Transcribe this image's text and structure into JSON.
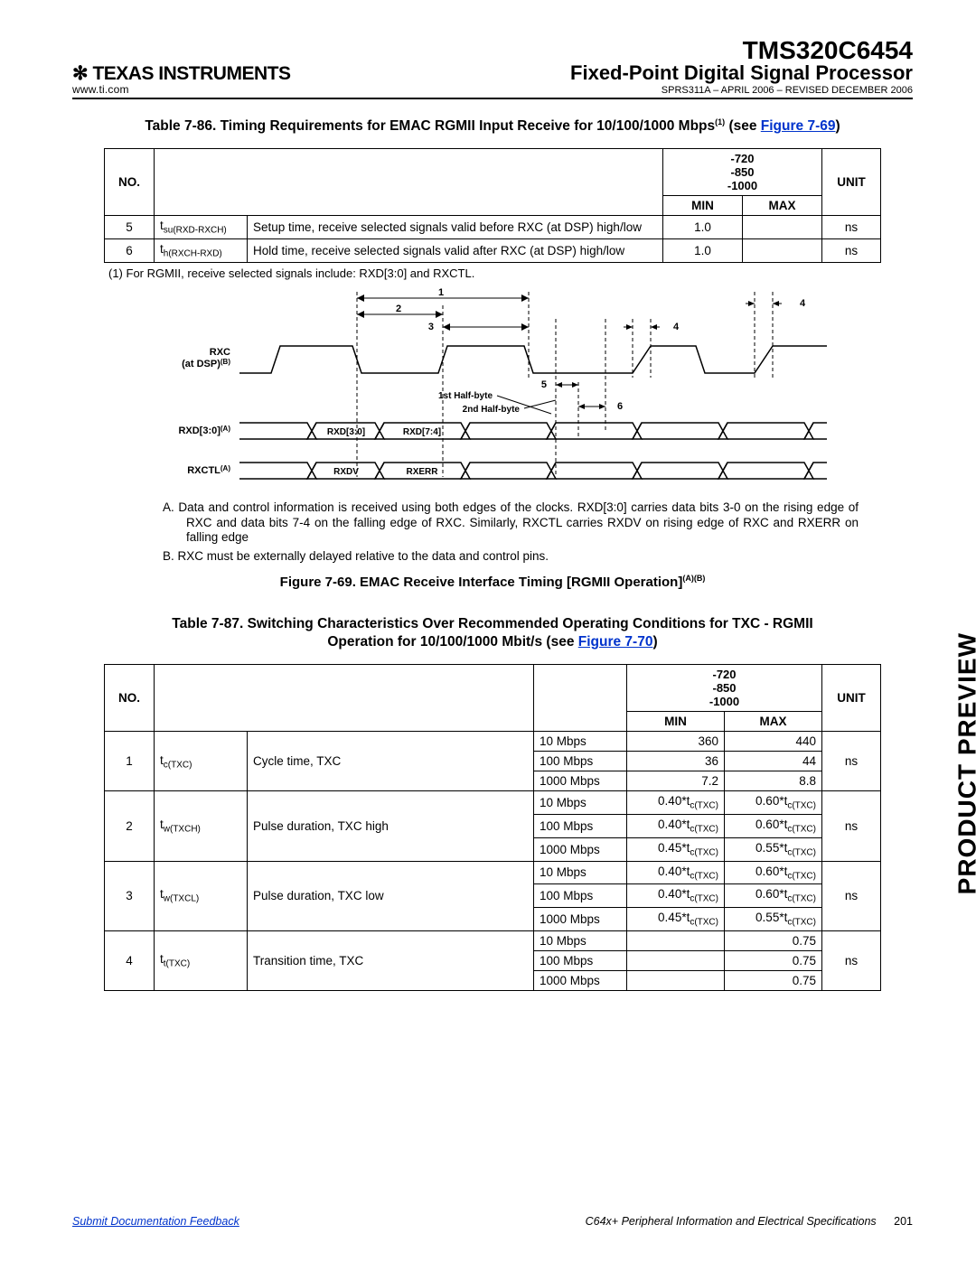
{
  "header": {
    "company": "TEXAS INSTRUMENTS",
    "url": "www.ti.com",
    "chip": "TMS320C6454",
    "subtitle": "Fixed-Point Digital Signal Processor",
    "rev": "SPRS311A – APRIL 2006 – REVISED DECEMBER 2006"
  },
  "sideLabel": "PRODUCT PREVIEW",
  "table86": {
    "title_pre": "Table 7-86. Timing Requirements for EMAC RGMII Input Receive for 10/100/1000 Mbps",
    "title_sup": "(1)",
    "title_see": " (see ",
    "title_ref": "Figure 7-69",
    "title_post": ")",
    "cols": {
      "no": "NO.",
      "speed": "-720\n-850\n-1000",
      "min": "MIN",
      "max": "MAX",
      "unit": "UNIT"
    },
    "rows": [
      {
        "no": "5",
        "sym_main": "t",
        "sym_sub": "su(RXD-RXCH)",
        "desc": "Setup time, receive selected signals valid before RXC (at DSP) high/low",
        "min": "1.0",
        "max": "",
        "unit": "ns"
      },
      {
        "no": "6",
        "sym_main": "t",
        "sym_sub": "h(RXCH-RXD)",
        "desc": "Hold time, receive selected signals valid after RXC (at DSP) high/low",
        "min": "1.0",
        "max": "",
        "unit": "ns"
      }
    ],
    "foot": "(1)   For RGMII, receive selected signals include: RXD[3:0] and RXCTL."
  },
  "diagram": {
    "sig_rxc_a": "RXC",
    "sig_rxc_b": "(at DSP)",
    "sig_rxc_sup": "(B)",
    "sig_rxd": "RXD[3:0]",
    "sig_rxd_sup": "(A)",
    "sig_rxctl": "RXCTL",
    "sig_rxctl_sup": "(A)",
    "lbl_1": "1",
    "lbl_2": "2",
    "lbl_3": "3",
    "lbl_4a": "4",
    "lbl_4b": "4",
    "lbl_5": "5",
    "lbl_6": "6",
    "lbl_1hb": "1st Half-byte",
    "lbl_2hb": "2nd Half-byte",
    "lbl_rxd30": "RXD[3:0]",
    "lbl_rxd74": "RXD[7:4]",
    "lbl_rxdv": "RXDV",
    "lbl_rxerr": "RXERR"
  },
  "notes": {
    "A": "A.    Data and control information is received using both edges of the clocks. RXD[3:0] carries data bits 3-0 on the rising edge of RXC and data bits 7-4 on the falling edge of RXC. Similarly, RXCTL carries RXDV on rising edge of RXC and RXERR on falling edge",
    "B": "B.    RXC must be externally delayed relative to the data and control pins."
  },
  "fig69": {
    "pre": "Figure 7-69. EMAC Receive Interface Timing [RGMII Operation]",
    "sup": "(A)(B)"
  },
  "table87": {
    "title_l1": "Table 7-87. Switching Characteristics Over Recommended Operating Conditions for TXC - RGMII",
    "title_l2_pre": "Operation for 10/100/1000 Mbit/s (see ",
    "title_l2_ref": "Figure 7-70",
    "title_l2_post": ")",
    "cols": {
      "no": "NO.",
      "speed": "-720\n-850\n-1000",
      "min": "MIN",
      "max": "MAX",
      "unit": "UNIT"
    },
    "groups": [
      {
        "no": "1",
        "sym_main": "t",
        "sym_sub": "c(TXC)",
        "desc": "Cycle time, TXC",
        "unit": "ns",
        "rows": [
          {
            "rate": "10 Mbps",
            "min": "360",
            "max": "440"
          },
          {
            "rate": "100 Mbps",
            "min": "36",
            "max": "44"
          },
          {
            "rate": "1000 Mbps",
            "min": "7.2",
            "max": "8.8"
          }
        ]
      },
      {
        "no": "2",
        "sym_main": "t",
        "sym_sub": "w(TXCH)",
        "desc": "Pulse duration, TXC high",
        "unit": "ns",
        "rows": [
          {
            "rate": "10 Mbps",
            "min": "0.40*t_c(TXC)",
            "max": "0.60*t_c(TXC)"
          },
          {
            "rate": "100 Mbps",
            "min": "0.40*t_c(TXC)",
            "max": "0.60*t_c(TXC)"
          },
          {
            "rate": "1000 Mbps",
            "min": "0.45*t_c(TXC)",
            "max": "0.55*t_c(TXC)"
          }
        ]
      },
      {
        "no": "3",
        "sym_main": "t",
        "sym_sub": "w(TXCL)",
        "desc": "Pulse duration, TXC low",
        "unit": "ns",
        "rows": [
          {
            "rate": "10 Mbps",
            "min": "0.40*t_c(TXC)",
            "max": "0.60*t_c(TXC)"
          },
          {
            "rate": "100 Mbps",
            "min": "0.40*t_c(TXC)",
            "max": "0.60*t_c(TXC)"
          },
          {
            "rate": "1000 Mbps",
            "min": "0.45*t_c(TXC)",
            "max": "0.55*t_c(TXC)"
          }
        ]
      },
      {
        "no": "4",
        "sym_main": "t",
        "sym_sub": "t(TXC)",
        "desc": "Transition time, TXC",
        "unit": "ns",
        "rows": [
          {
            "rate": "10 Mbps",
            "min": "",
            "max": "0.75"
          },
          {
            "rate": "100 Mbps",
            "min": "",
            "max": "0.75"
          },
          {
            "rate": "1000 Mbps",
            "min": "",
            "max": "0.75"
          }
        ]
      }
    ]
  },
  "footer": {
    "feedback": "Submit Documentation Feedback",
    "section": "C64x+ Peripheral Information and Electrical Specifications",
    "page": "201"
  }
}
